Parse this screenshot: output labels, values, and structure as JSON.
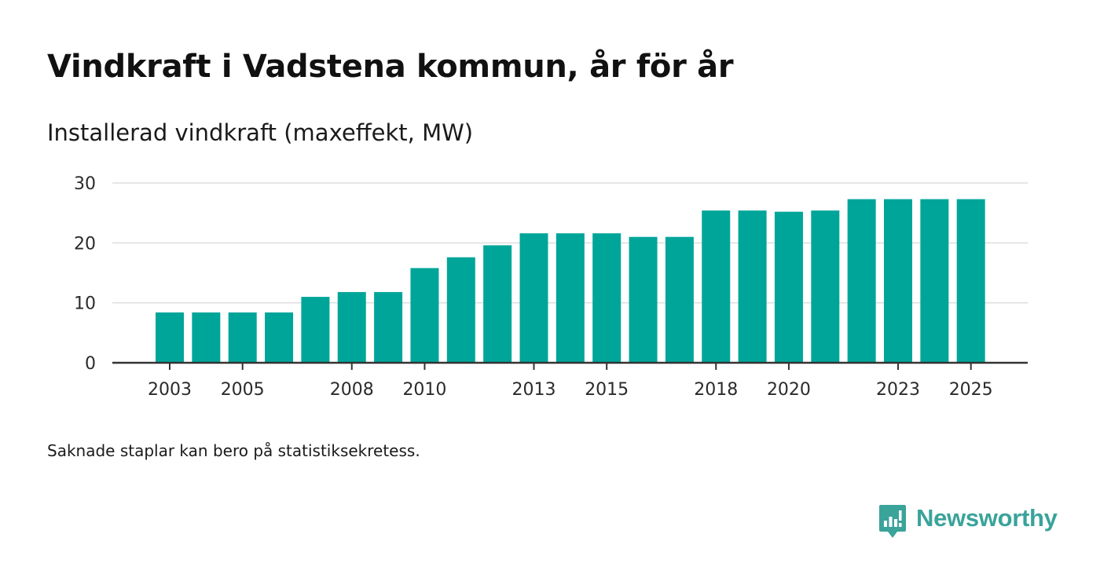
{
  "header": {
    "title": "Vindkraft i Vadstena kommun, år för år",
    "subtitle": "Installerad vindkraft (maxeffekt, MW)"
  },
  "footer": {
    "note": "Saknade staplar kan bero på statistiksekretess.",
    "brand": "Newsworthy"
  },
  "colors": {
    "bar": "#00a59a",
    "grid": "#dddddd",
    "axis": "#333333",
    "brand": "#3aa39a"
  },
  "chart_data": {
    "type": "bar",
    "title": "Vindkraft i Vadstena kommun, år för år",
    "ylabel": "Installerad vindkraft (maxeffekt, MW)",
    "xlabel": "",
    "ylim": [
      0,
      30
    ],
    "yticks": [
      0,
      10,
      20,
      30
    ],
    "grid": true,
    "categories": [
      2003,
      2004,
      2005,
      2006,
      2007,
      2008,
      2009,
      2010,
      2011,
      2012,
      2013,
      2014,
      2015,
      2016,
      2017,
      2018,
      2019,
      2020,
      2021,
      2022,
      2023,
      2024,
      2025
    ],
    "values": [
      8.4,
      8.4,
      8.4,
      8.4,
      11.0,
      11.8,
      11.8,
      15.8,
      17.6,
      19.6,
      21.6,
      21.6,
      21.6,
      21.0,
      21.0,
      25.4,
      25.4,
      25.2,
      25.4,
      27.3,
      27.3,
      27.3,
      27.3
    ],
    "xtick_labels": [
      2003,
      2005,
      2008,
      2010,
      2013,
      2015,
      2018,
      2020,
      2023,
      2025
    ]
  }
}
